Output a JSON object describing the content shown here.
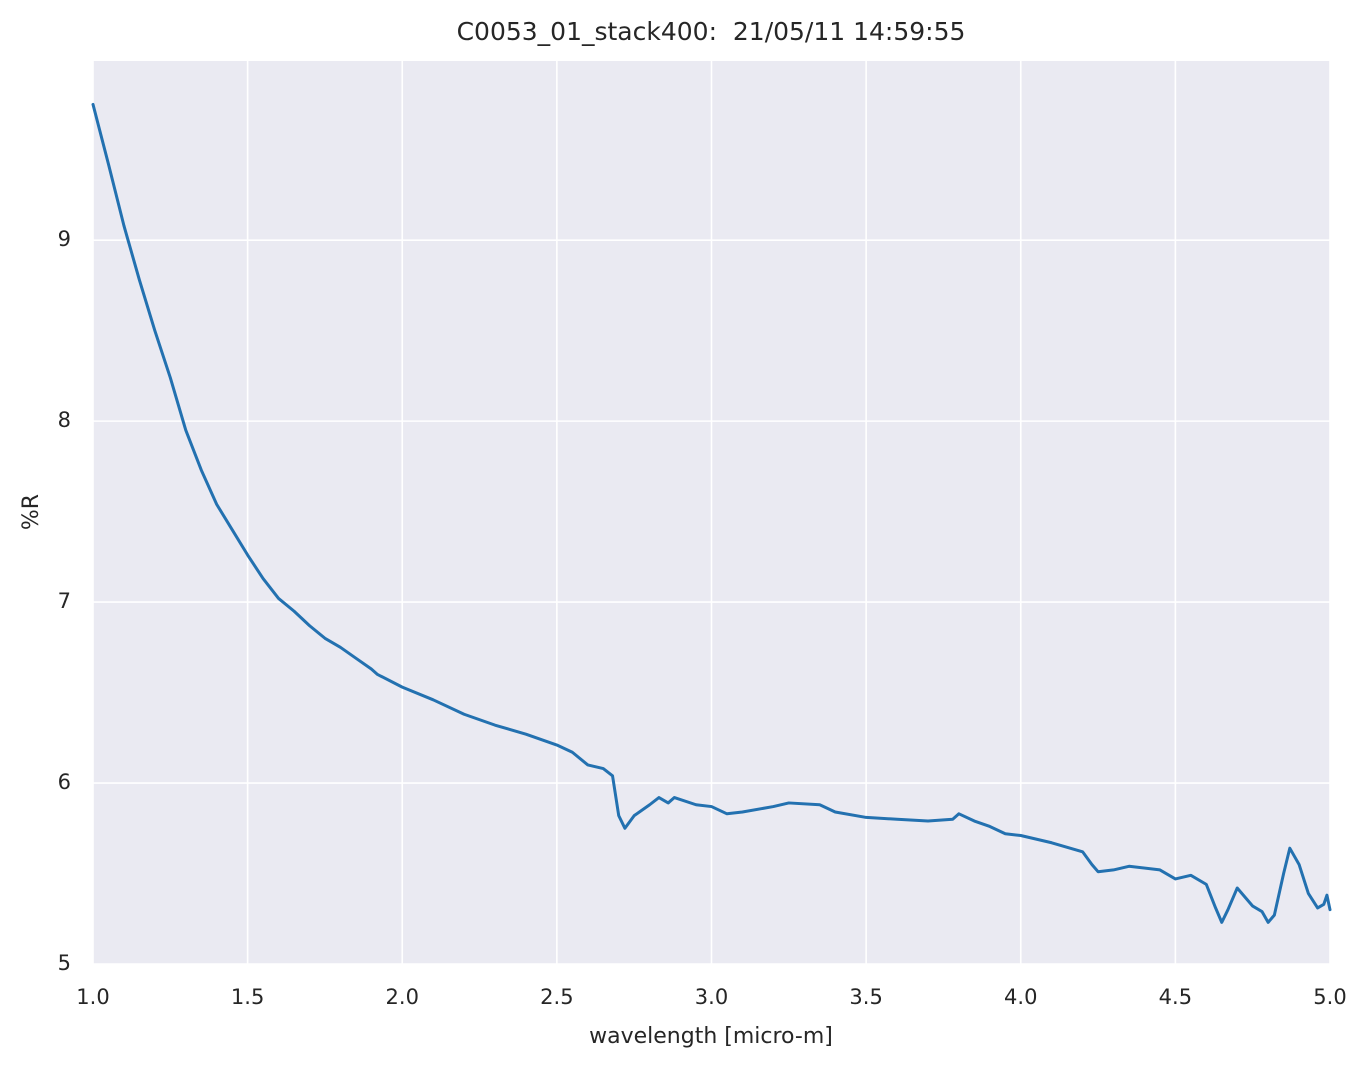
{
  "chart_data": {
    "type": "line",
    "title": "C0053_01_stack400:  21/05/11 14:59:55",
    "x_label": "wavelength [micro-m]",
    "y_label": "%R",
    "color": "#2371b0",
    "background": "#eaeaf2",
    "grid": true,
    "xlim": [
      1,
      5
    ],
    "ylim": [
      5,
      9.99
    ],
    "xticks": [
      {
        "value": 1,
        "label": "1.0"
      },
      1.5,
      {
        "value": 2,
        "label": "2.0"
      },
      2.5,
      {
        "value": 3,
        "label": "3.0"
      },
      3.5,
      {
        "value": 4,
        "label": "4.0"
      },
      4.5,
      {
        "value": 5,
        "label": "5.0"
      }
    ],
    "yticks": [
      5,
      6,
      7,
      8,
      9
    ],
    "x": [
      1.0,
      1.05,
      1.1,
      1.15,
      1.2,
      1.25,
      1.3,
      1.35,
      1.4,
      1.45,
      1.5,
      1.55,
      1.6,
      1.65,
      1.7,
      1.75,
      1.8,
      1.85,
      1.9,
      1.92,
      2.0,
      2.1,
      2.2,
      2.3,
      2.4,
      2.5,
      2.55,
      2.6,
      2.65,
      2.68,
      2.7,
      2.72,
      2.75,
      2.8,
      2.83,
      2.86,
      2.88,
      2.95,
      3.0,
      3.05,
      3.1,
      3.2,
      3.25,
      3.35,
      3.4,
      3.5,
      3.6,
      3.7,
      3.78,
      3.8,
      3.85,
      3.9,
      3.95,
      4.0,
      4.1,
      4.2,
      4.23,
      4.25,
      4.3,
      4.35,
      4.45,
      4.5,
      4.55,
      4.6,
      4.63,
      4.65,
      4.67,
      4.7,
      4.73,
      4.75,
      4.78,
      4.8,
      4.82,
      4.85,
      4.87,
      4.9,
      4.93,
      4.96,
      4.98,
      4.99,
      5.0
    ],
    "values": [
      9.75,
      9.42,
      9.08,
      8.78,
      8.5,
      8.24,
      7.95,
      7.73,
      7.54,
      7.4,
      7.26,
      7.13,
      7.02,
      6.95,
      6.87,
      6.8,
      6.75,
      6.69,
      6.63,
      6.6,
      6.53,
      6.46,
      6.38,
      6.32,
      6.27,
      6.21,
      6.17,
      6.1,
      6.08,
      6.04,
      5.82,
      5.75,
      5.82,
      5.88,
      5.92,
      5.89,
      5.92,
      5.88,
      5.87,
      5.83,
      5.84,
      5.87,
      5.89,
      5.88,
      5.84,
      5.81,
      5.8,
      5.79,
      5.8,
      5.83,
      5.79,
      5.76,
      5.72,
      5.71,
      5.67,
      5.62,
      5.55,
      5.51,
      5.52,
      5.54,
      5.52,
      5.47,
      5.49,
      5.44,
      5.31,
      5.23,
      5.3,
      5.42,
      5.36,
      5.32,
      5.29,
      5.23,
      5.27,
      5.5,
      5.64,
      5.55,
      5.39,
      5.31,
      5.33,
      5.38,
      5.3
    ]
  }
}
